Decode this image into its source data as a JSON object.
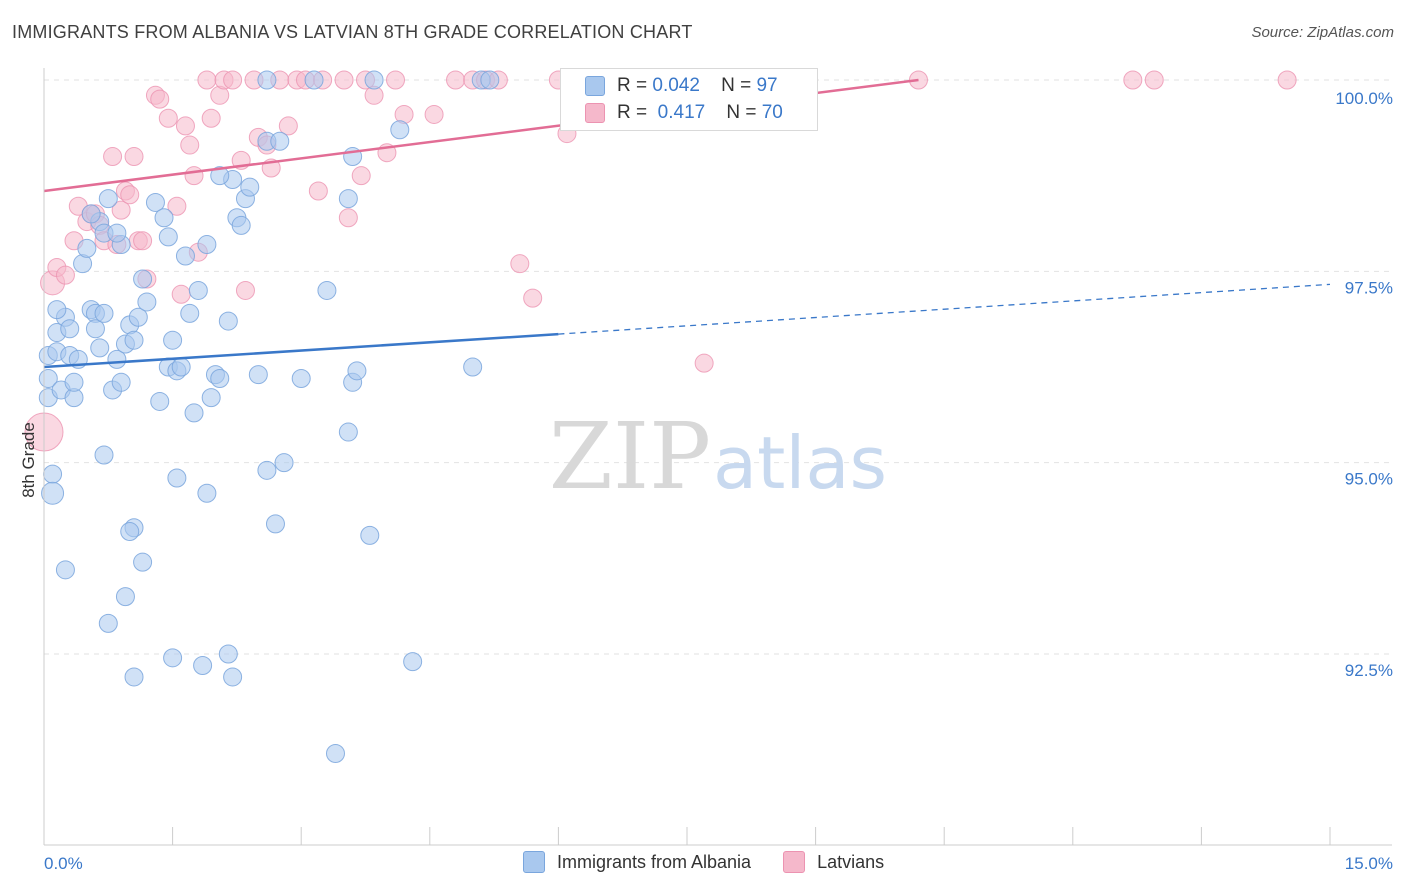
{
  "title": "IMMIGRANTS FROM ALBANIA VS LATVIAN 8TH GRADE CORRELATION CHART",
  "source": "Source: ZipAtlas.com",
  "watermark": {
    "zip": "ZIP",
    "atlas": "atlas"
  },
  "colors": {
    "blue_fill": "#a9c8ee",
    "blue_stroke": "#7aa6dd",
    "blue_line": "#3a78c9",
    "pink_fill": "#f5b8cb",
    "pink_stroke": "#ec93b1",
    "pink_line": "#e26d95",
    "axis_label": "#3a78c9"
  },
  "legend": {
    "rows": [
      {
        "r_label": "R =",
        "r_value": "0.042",
        "n_label": "N =",
        "n_value": "97"
      },
      {
        "r_label": "R =",
        "r_value": "0.417",
        "n_label": "N =",
        "n_value": "70"
      }
    ]
  },
  "bottom_legend": [
    "Immigrants from Albania",
    "Latvians"
  ],
  "chart_data": {
    "type": "scatter",
    "title": "IMMIGRANTS FROM ALBANIA VS LATVIAN 8TH GRADE CORRELATION CHART",
    "xlabel": "",
    "ylabel": "8th Grade",
    "xlim": [
      0.0,
      15.0
    ],
    "ylim": [
      90.3,
      100.3
    ],
    "x_tick_labels": [
      "0.0%",
      "15.0%"
    ],
    "y_ticks": [
      92.5,
      95.0,
      97.5,
      100.0
    ],
    "y_tick_labels": [
      "92.5%",
      "95.0%",
      "97.5%",
      "100.0%"
    ],
    "grid": true,
    "series": [
      {
        "name": "Immigrants from Albania",
        "color": "#a9c8ee",
        "r": 0.042,
        "n": 97,
        "trend": {
          "x0": 0.0,
          "y0": 96.25,
          "x1": 6.0,
          "y1": 96.68,
          "dashed_to_x": 15.0,
          "dashed_to_y": 97.33
        },
        "points": [
          [
            0.05,
            96.4
          ],
          [
            0.05,
            96.1
          ],
          [
            0.05,
            95.85
          ],
          [
            0.1,
            94.85
          ],
          [
            0.1,
            94.6
          ],
          [
            0.15,
            96.7
          ],
          [
            0.15,
            96.45
          ],
          [
            0.2,
            95.95
          ],
          [
            0.25,
            96.9
          ],
          [
            0.3,
            96.75
          ],
          [
            0.3,
            96.4
          ],
          [
            0.35,
            95.85
          ],
          [
            0.35,
            96.05
          ],
          [
            0.4,
            96.35
          ],
          [
            0.45,
            97.6
          ],
          [
            0.5,
            97.8
          ],
          [
            0.55,
            97.0
          ],
          [
            0.6,
            96.95
          ],
          [
            0.6,
            96.75
          ],
          [
            0.65,
            98.15
          ],
          [
            0.7,
            98.0
          ],
          [
            0.7,
            95.1
          ],
          [
            0.75,
            98.45
          ],
          [
            0.7,
            96.95
          ],
          [
            0.85,
            96.35
          ],
          [
            0.8,
            95.95
          ],
          [
            0.9,
            97.85
          ],
          [
            0.9,
            96.05
          ],
          [
            1.0,
            96.8
          ],
          [
            0.95,
            96.55
          ],
          [
            1.05,
            96.6
          ],
          [
            1.1,
            96.9
          ],
          [
            1.15,
            97.4
          ],
          [
            1.2,
            97.1
          ],
          [
            1.3,
            98.4
          ],
          [
            1.35,
            95.8
          ],
          [
            1.4,
            98.2
          ],
          [
            1.45,
            97.95
          ],
          [
            1.5,
            96.6
          ],
          [
            1.45,
            96.25
          ],
          [
            1.55,
            96.2
          ],
          [
            1.6,
            96.25
          ],
          [
            1.65,
            97.7
          ],
          [
            1.7,
            96.95
          ],
          [
            1.75,
            95.65
          ],
          [
            1.8,
            97.25
          ],
          [
            1.9,
            97.85
          ],
          [
            1.95,
            95.85
          ],
          [
            2.0,
            96.15
          ],
          [
            2.05,
            96.1
          ],
          [
            2.15,
            96.85
          ],
          [
            2.2,
            98.7
          ],
          [
            2.25,
            98.2
          ],
          [
            2.3,
            98.1
          ],
          [
            2.35,
            98.45
          ],
          [
            2.4,
            98.6
          ],
          [
            2.5,
            96.15
          ],
          [
            2.6,
            94.9
          ],
          [
            2.6,
            99.2
          ],
          [
            2.7,
            94.2
          ],
          [
            2.75,
            99.2
          ],
          [
            2.8,
            95.0
          ],
          [
            2.6,
            100.0
          ],
          [
            3.0,
            96.1
          ],
          [
            3.15,
            100.0
          ],
          [
            3.3,
            97.25
          ],
          [
            3.55,
            98.45
          ],
          [
            3.6,
            99.0
          ],
          [
            3.6,
            96.05
          ],
          [
            3.65,
            96.2
          ],
          [
            3.55,
            95.4
          ],
          [
            3.8,
            94.05
          ],
          [
            3.85,
            100.0
          ],
          [
            4.15,
            99.35
          ],
          [
            5.0,
            96.25
          ],
          [
            5.1,
            100.0
          ],
          [
            5.2,
            100.0
          ],
          [
            1.05,
            94.15
          ],
          [
            1.15,
            93.7
          ],
          [
            0.25,
            93.6
          ],
          [
            1.0,
            94.1
          ],
          [
            0.95,
            93.25
          ],
          [
            0.75,
            92.9
          ],
          [
            1.55,
            94.8
          ],
          [
            1.9,
            94.6
          ],
          [
            1.5,
            92.45
          ],
          [
            1.85,
            92.35
          ],
          [
            2.15,
            92.5
          ],
          [
            2.2,
            92.2
          ],
          [
            1.05,
            92.2
          ],
          [
            4.3,
            92.4
          ],
          [
            3.4,
            91.2
          ],
          [
            0.15,
            97.0
          ],
          [
            0.65,
            96.5
          ],
          [
            0.55,
            98.25
          ],
          [
            0.85,
            98.0
          ],
          [
            2.05,
            98.75
          ]
        ],
        "point_sizes": {
          "0.0,94.6": "large"
        }
      },
      {
        "name": "Latvians",
        "color": "#f5b8cb",
        "r": 0.417,
        "n": 70,
        "trend": {
          "x0": 0.0,
          "y0": 98.55,
          "x1": 10.2,
          "y1": 100.0
        },
        "points": [
          [
            0.0,
            95.4
          ],
          [
            0.1,
            97.35
          ],
          [
            0.15,
            97.55
          ],
          [
            0.25,
            97.45
          ],
          [
            0.35,
            97.9
          ],
          [
            0.4,
            98.35
          ],
          [
            0.5,
            98.15
          ],
          [
            0.55,
            98.25
          ],
          [
            0.6,
            98.25
          ],
          [
            0.65,
            98.1
          ],
          [
            0.7,
            97.9
          ],
          [
            0.8,
            99.0
          ],
          [
            0.85,
            97.85
          ],
          [
            0.9,
            98.3
          ],
          [
            0.95,
            98.55
          ],
          [
            1.0,
            98.5
          ],
          [
            1.05,
            99.0
          ],
          [
            1.1,
            97.9
          ],
          [
            1.15,
            97.9
          ],
          [
            1.2,
            97.4
          ],
          [
            1.3,
            99.8
          ],
          [
            1.35,
            99.75
          ],
          [
            1.45,
            99.5
          ],
          [
            1.55,
            98.35
          ],
          [
            1.6,
            97.2
          ],
          [
            1.65,
            99.4
          ],
          [
            1.7,
            99.15
          ],
          [
            1.75,
            98.75
          ],
          [
            1.8,
            97.75
          ],
          [
            1.9,
            100.0
          ],
          [
            1.95,
            99.5
          ],
          [
            2.05,
            99.8
          ],
          [
            2.1,
            100.0
          ],
          [
            2.2,
            100.0
          ],
          [
            2.3,
            98.95
          ],
          [
            2.35,
            97.25
          ],
          [
            2.5,
            99.25
          ],
          [
            2.6,
            99.15
          ],
          [
            2.65,
            98.85
          ],
          [
            2.75,
            100.0
          ],
          [
            2.85,
            99.4
          ],
          [
            2.95,
            100.0
          ],
          [
            3.05,
            100.0
          ],
          [
            3.2,
            98.55
          ],
          [
            3.25,
            100.0
          ],
          [
            3.5,
            100.0
          ],
          [
            3.55,
            98.2
          ],
          [
            3.7,
            98.75
          ],
          [
            3.75,
            100.0
          ],
          [
            3.85,
            99.8
          ],
          [
            4.0,
            99.05
          ],
          [
            4.1,
            100.0
          ],
          [
            4.2,
            99.55
          ],
          [
            4.55,
            99.55
          ],
          [
            4.8,
            100.0
          ],
          [
            5.0,
            100.0
          ],
          [
            5.15,
            100.0
          ],
          [
            5.3,
            100.0
          ],
          [
            5.55,
            97.6
          ],
          [
            5.7,
            97.15
          ],
          [
            6.0,
            100.0
          ],
          [
            6.1,
            99.3
          ],
          [
            7.7,
            96.3
          ],
          [
            8.4,
            100.0
          ],
          [
            8.9,
            100.0
          ],
          [
            10.2,
            100.0
          ],
          [
            12.7,
            100.0
          ],
          [
            12.95,
            100.0
          ],
          [
            14.5,
            100.0
          ],
          [
            2.45,
            100.0
          ]
        ]
      }
    ]
  }
}
